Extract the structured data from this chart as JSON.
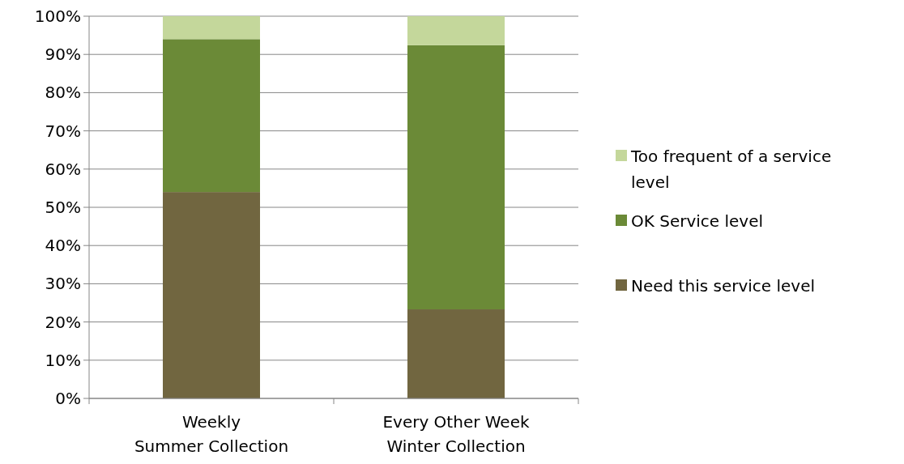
{
  "chart_data": {
    "type": "bar",
    "stacked": true,
    "categories": [
      "Weekly Summer Collection",
      "Every Other Week Winter Collection"
    ],
    "series": [
      {
        "name": "Need this service level",
        "color": "#716640",
        "values": [
          54,
          23.3
        ]
      },
      {
        "name": "OK Service level",
        "color": "#6b8a37",
        "values": [
          40,
          69.1
        ]
      },
      {
        "name": "Too frequent of a service level",
        "color": "#c4d79b",
        "values": [
          6,
          7.6
        ]
      }
    ],
    "ylim": [
      0,
      100
    ],
    "yticks": [
      {
        "value": 0,
        "label": "0%"
      },
      {
        "value": 10,
        "label": "10%"
      },
      {
        "value": 20,
        "label": "20%"
      },
      {
        "value": 30,
        "label": "30%"
      },
      {
        "value": 40,
        "label": "40%"
      },
      {
        "value": 50,
        "label": "50%"
      },
      {
        "value": 60,
        "label": "60%"
      },
      {
        "value": 70,
        "label": "70%"
      },
      {
        "value": 80,
        "label": "80%"
      },
      {
        "value": 90,
        "label": "90%"
      },
      {
        "value": 100,
        "label": "100%"
      }
    ],
    "grid": "y",
    "legend": "right"
  }
}
